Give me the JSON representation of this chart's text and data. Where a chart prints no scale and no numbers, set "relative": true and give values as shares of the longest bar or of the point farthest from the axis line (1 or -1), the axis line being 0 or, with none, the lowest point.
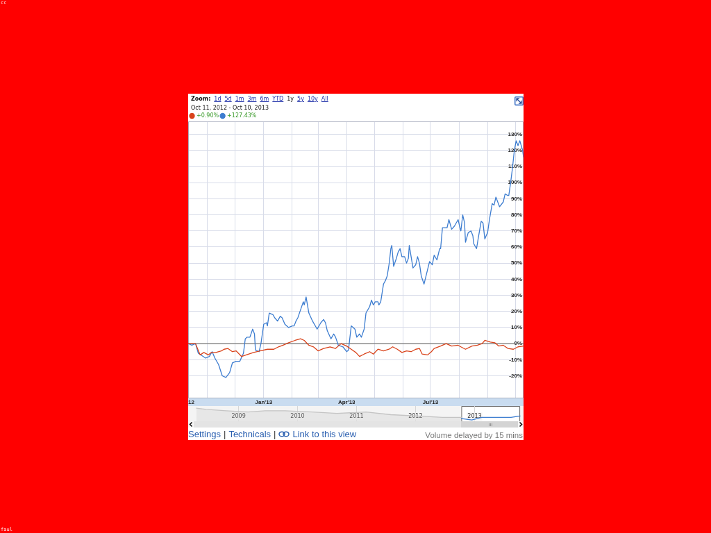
{
  "chart_data": [
    {
      "type": "line",
      "subtitle": "Oct 11, 2012 - Oct 10, 2013",
      "series": [
        {
          "name": "+0.90%",
          "color": "#d9441c",
          "x": [
            "2012-10-11",
            "2012-10-19",
            "2012-10-24",
            "2012-10-28",
            "2012-11-02",
            "2012-11-05",
            "2012-11-10",
            "2012-11-16",
            "2012-11-19",
            "2012-11-23",
            "2012-11-28",
            "2012-12-02",
            "2012-12-08",
            "2012-12-13",
            "2012-12-21",
            "2012-12-28",
            "2013-01-05",
            "2013-01-12",
            "2013-01-17",
            "2013-01-22",
            "2013-01-28",
            "2013-02-04",
            "2013-02-10",
            "2013-02-14",
            "2013-02-19",
            "2013-02-24",
            "2013-03-01",
            "2013-03-07",
            "2013-03-14",
            "2013-03-20",
            "2013-03-26",
            "2013-04-01",
            "2013-04-06",
            "2013-04-11",
            "2013-04-15",
            "2013-04-20",
            "2013-04-26",
            "2013-04-30",
            "2013-05-05",
            "2013-05-11",
            "2013-05-17",
            "2013-05-21",
            "2013-05-26",
            "2013-05-31",
            "2013-06-05",
            "2013-06-10",
            "2013-06-15",
            "2013-06-19",
            "2013-06-22",
            "2013-06-28",
            "2013-07-02",
            "2013-07-05",
            "2013-07-12",
            "2013-07-18",
            "2013-07-24",
            "2013-07-31",
            "2013-08-03",
            "2013-08-08",
            "2013-08-15",
            "2013-08-21",
            "2013-08-26",
            "2013-08-29",
            "2013-09-04",
            "2013-09-09",
            "2013-09-13",
            "2013-09-18",
            "2013-09-23",
            "2013-09-29",
            "2013-10-04",
            "2013-10-10"
          ],
          "values": [
            0,
            0,
            -7,
            -5.5,
            -7,
            -5.5,
            -5.5,
            -4.5,
            -3.5,
            -3,
            -5,
            -4.5,
            -8,
            -7,
            -5.5,
            -4.5,
            -3.5,
            -3.5,
            -2,
            -1,
            0.5,
            2,
            3,
            2,
            -1,
            -2,
            -4.5,
            -3,
            -2,
            -3,
            0,
            -1.5,
            -3.5,
            -5.5,
            -8,
            -6.5,
            -5,
            -6.5,
            -3.5,
            -4.5,
            -3.5,
            -2,
            -3.5,
            -5.5,
            -4.5,
            -5,
            -3.5,
            -3,
            -6.5,
            -7,
            -5,
            -3,
            -1.5,
            0,
            -1.5,
            -1,
            -2,
            -3.5,
            -1.5,
            -1,
            0,
            2,
            1,
            0.5,
            -1.5,
            -1,
            -3,
            -3.5,
            -2,
            -1.5
          ]
        },
        {
          "name": "+127.43%",
          "color": "#3d7dd0",
          "x": [
            "2012-10-11",
            "2012-10-15",
            "2012-10-19",
            "2012-10-22",
            "2012-10-30",
            "2012-11-03",
            "2012-11-06",
            "2012-11-09",
            "2012-11-13",
            "2012-11-17",
            "2012-11-21",
            "2012-11-25",
            "2012-11-28",
            "2012-12-02",
            "2012-12-06",
            "2012-12-10",
            "2012-12-12",
            "2012-12-14",
            "2012-12-17",
            "2012-12-20",
            "2012-12-22",
            "2012-12-23",
            "2012-12-27",
            "2012-12-29",
            "2013-01-01",
            "2013-01-04",
            "2013-01-05",
            "2013-01-07",
            "2013-01-11",
            "2013-01-13",
            "2013-01-16",
            "2013-01-19",
            "2013-01-21",
            "2013-01-24",
            "2013-01-28",
            "2013-02-01",
            "2013-02-03",
            "2013-02-05",
            "2013-02-07",
            "2013-02-10",
            "2013-02-13",
            "2013-02-14",
            "2013-02-16",
            "2013-02-19",
            "2013-02-23",
            "2013-02-28",
            "2013-03-04",
            "2013-03-07",
            "2013-03-09",
            "2013-03-11",
            "2013-03-15",
            "2013-03-18",
            "2013-03-20",
            "2013-03-23",
            "2013-03-28",
            "2013-04-01",
            "2013-04-03",
            "2013-04-06",
            "2013-04-10",
            "2013-04-12",
            "2013-04-15",
            "2013-04-17",
            "2013-04-20",
            "2013-04-22",
            "2013-04-26",
            "2013-04-28",
            "2013-04-30",
            "2013-05-02",
            "2013-05-05",
            "2013-05-06",
            "2013-05-08",
            "2013-05-11",
            "2013-05-13",
            "2013-05-15",
            "2013-05-17",
            "2013-05-19",
            "2013-05-20",
            "2013-05-22",
            "2013-05-25",
            "2013-05-27",
            "2013-05-29",
            "2013-05-31",
            "2013-06-03",
            "2013-06-05",
            "2013-06-07",
            "2013-06-08",
            "2013-06-10",
            "2013-06-12",
            "2013-06-15",
            "2013-06-17",
            "2013-06-19",
            "2013-06-21",
            "2013-06-24",
            "2013-06-27",
            "2013-06-30",
            "2013-07-03",
            "2013-07-05",
            "2013-07-08",
            "2013-07-11",
            "2013-07-12",
            "2013-07-14",
            "2013-07-17",
            "2013-07-19",
            "2013-07-21",
            "2013-07-24",
            "2013-07-27",
            "2013-07-31",
            "2013-08-02",
            "2013-08-03",
            "2013-08-05",
            "2013-08-07",
            "2013-08-08",
            "2013-08-11",
            "2013-08-14",
            "2013-08-16",
            "2013-08-17",
            "2013-08-20",
            "2013-08-22",
            "2013-08-25",
            "2013-08-27",
            "2013-08-29",
            "2013-09-01",
            "2013-09-03",
            "2013-09-06",
            "2013-09-08",
            "2013-09-10",
            "2013-09-14",
            "2013-09-18",
            "2013-09-20",
            "2013-09-23",
            "2013-09-24",
            "2013-09-26",
            "2013-09-28",
            "2013-09-30",
            "2013-10-02",
            "2013-10-04",
            "2013-10-06",
            "2013-10-09",
            "2013-10-10"
          ],
          "values": [
            0,
            -1,
            0,
            -6,
            -9,
            -8,
            -5,
            -9,
            -13,
            -20,
            -21,
            -18,
            -12,
            -11,
            -11,
            -6,
            3,
            4,
            4,
            9,
            6,
            -4,
            -5,
            0,
            12,
            13,
            11,
            19,
            18,
            16,
            14,
            17,
            16,
            12,
            10,
            11,
            11,
            14,
            16,
            21,
            26,
            24,
            29,
            19,
            14,
            9,
            13,
            15,
            13,
            8,
            3,
            6,
            4,
            -1,
            -2,
            -5,
            -4,
            11,
            9,
            4,
            6,
            4,
            9,
            19,
            23,
            27,
            24,
            26,
            26,
            24,
            26,
            37,
            39,
            42,
            49,
            59,
            61,
            48,
            53,
            57,
            59,
            54,
            54,
            50,
            53,
            61,
            54,
            47,
            49,
            54,
            50,
            42,
            37,
            44,
            51,
            49,
            55,
            52,
            59,
            59,
            72,
            72,
            72,
            77,
            71,
            73,
            77,
            72,
            70,
            80,
            75,
            63,
            69,
            70,
            67,
            62,
            59,
            66,
            76,
            75,
            65,
            69,
            77,
            87,
            86,
            91,
            85,
            88,
            93,
            92,
            92,
            100,
            109,
            120,
            126,
            123,
            126,
            120,
            116
          ]
        }
      ],
      "xlim": [
        "2012-10-11",
        "2013-10-10"
      ],
      "xticks": [
        {
          "value": "2012-10-11",
          "label": "12"
        },
        {
          "value": "2012-11-01",
          "label": null
        },
        {
          "value": "2012-12-01",
          "label": null
        },
        {
          "value": "2013-01-01",
          "label": "Jan'13"
        },
        {
          "value": "2013-02-01",
          "label": null
        },
        {
          "value": "2013-03-01",
          "label": null
        },
        {
          "value": "2013-04-01",
          "label": "Apr'13"
        },
        {
          "value": "2013-05-01",
          "label": null
        },
        {
          "value": "2013-06-01",
          "label": null
        },
        {
          "value": "2013-07-01",
          "label": "Jul'13"
        },
        {
          "value": "2013-08-01",
          "label": null
        },
        {
          "value": "2013-09-01",
          "label": null
        },
        {
          "value": "2013-10-01",
          "label": null
        }
      ],
      "ylim": [
        -34,
        138
      ],
      "yticks": [
        {
          "value": -20,
          "label": "-20%"
        },
        {
          "value": -10,
          "label": "-10%"
        },
        {
          "value": 0,
          "label": "0%"
        },
        {
          "value": 10,
          "label": "10%"
        },
        {
          "value": 20,
          "label": "20%"
        },
        {
          "value": 30,
          "label": "30%"
        },
        {
          "value": 40,
          "label": "40%"
        },
        {
          "value": 50,
          "label": "50%"
        },
        {
          "value": 60,
          "label": "60%"
        },
        {
          "value": 70,
          "label": "70%"
        },
        {
          "value": 80,
          "label": "80%"
        },
        {
          "value": 90,
          "label": "90%"
        },
        {
          "value": 100,
          "label": "100%"
        },
        {
          "value": 110,
          "label": "110%"
        },
        {
          "value": 120,
          "label": "120%"
        },
        {
          "value": 130,
          "label": "130%"
        }
      ],
      "grid": true,
      "legend": "top left",
      "ref_lines": [
        {
          "axis": "y",
          "value": 0,
          "color": "#888888"
        }
      ],
      "annotations": [
        "Zoom:",
        "1d",
        "5d",
        "1m",
        "3m",
        "6m",
        "YTD",
        "1y",
        "5y",
        "10y",
        "All",
        "Settings",
        "|",
        "Technicals",
        "|",
        "Link to this view",
        "Volume delayed by 15 mins",
        "cc",
        "faul"
      ]
    },
    {
      "type": "area",
      "relative": true,
      "series": [
        {
          "color": "#c4c4c4",
          "x": [
            "2008-04-15",
            "2008-06-15",
            "2008-10-15",
            "2009-03-01",
            "2009-06-15",
            "2009-10-15",
            "2010-04-01",
            "2010-09-01",
            "2011-03-01",
            "2011-08-01",
            "2012-01-15",
            "2012-06-15",
            "2012-10-11"
          ],
          "values": [
            1,
            0.9,
            0.8,
            0.7,
            0.8,
            0.8,
            0.7,
            0.6,
            0.7,
            0.5,
            0.4,
            0.3,
            0.3
          ]
        },
        {
          "type": "line",
          "color": "#3d7dd0",
          "x": [
            "2012-10-11",
            "2012-12-15",
            "2013-02-15",
            "2013-05-15",
            "2013-08-15",
            "2013-10-10"
          ],
          "values": [
            0.2,
            0.1,
            0.3,
            0.3,
            0.3,
            0.4
          ]
        }
      ],
      "xlim": [
        "2008-02-24",
        "2013-10-31"
      ],
      "xticks": [
        {
          "value": "2009-01-01",
          "label": "2009"
        },
        {
          "value": "2010-01-01",
          "label": "2010"
        },
        {
          "value": "2011-01-01",
          "label": "2011"
        },
        {
          "value": "2012-01-01",
          "label": "2012"
        },
        {
          "value": "2013-01-01",
          "label": "2013"
        }
      ],
      "grid": "x",
      "bands": [
        {
          "axis": "x",
          "from": "2012-10-11",
          "to": "2013-10-10",
          "color": "#ffffff"
        }
      ]
    }
  ]
}
